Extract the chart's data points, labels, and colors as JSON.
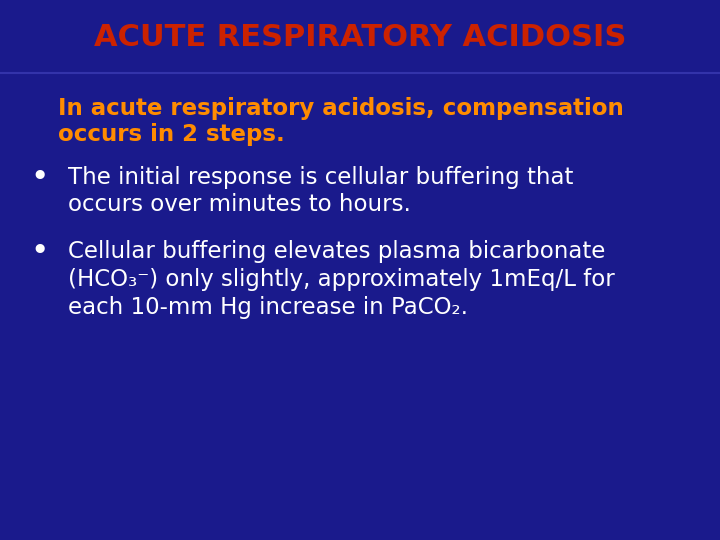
{
  "background_color": "#1a1a8c",
  "title": "ACUTE RESPIRATORY ACIDOSIS",
  "title_color": "#cc2200",
  "title_fontsize": 22,
  "subtitle_color": "#ff8c00",
  "subtitle_fontsize": 16.5,
  "subtitle_line1": "In acute respiratory acidosis, compensation",
  "subtitle_line2": "occurs in 2 steps.",
  "bullet1_line1": "The initial response is cellular buffering that",
  "bullet1_line2": "occurs over minutes to hours.",
  "bullet2_line1": "Cellular buffering elevates plasma bicarbonate",
  "bullet2_line2": "(HCO₃⁻) only slightly, approximately 1mEq/L for",
  "bullet2_line3": "each 10-mm Hg increase in PaCO₂.",
  "bullet_color": "#ffffff",
  "bullet_fontsize": 16.5,
  "figsize": [
    7.2,
    5.4
  ],
  "dpi": 100
}
